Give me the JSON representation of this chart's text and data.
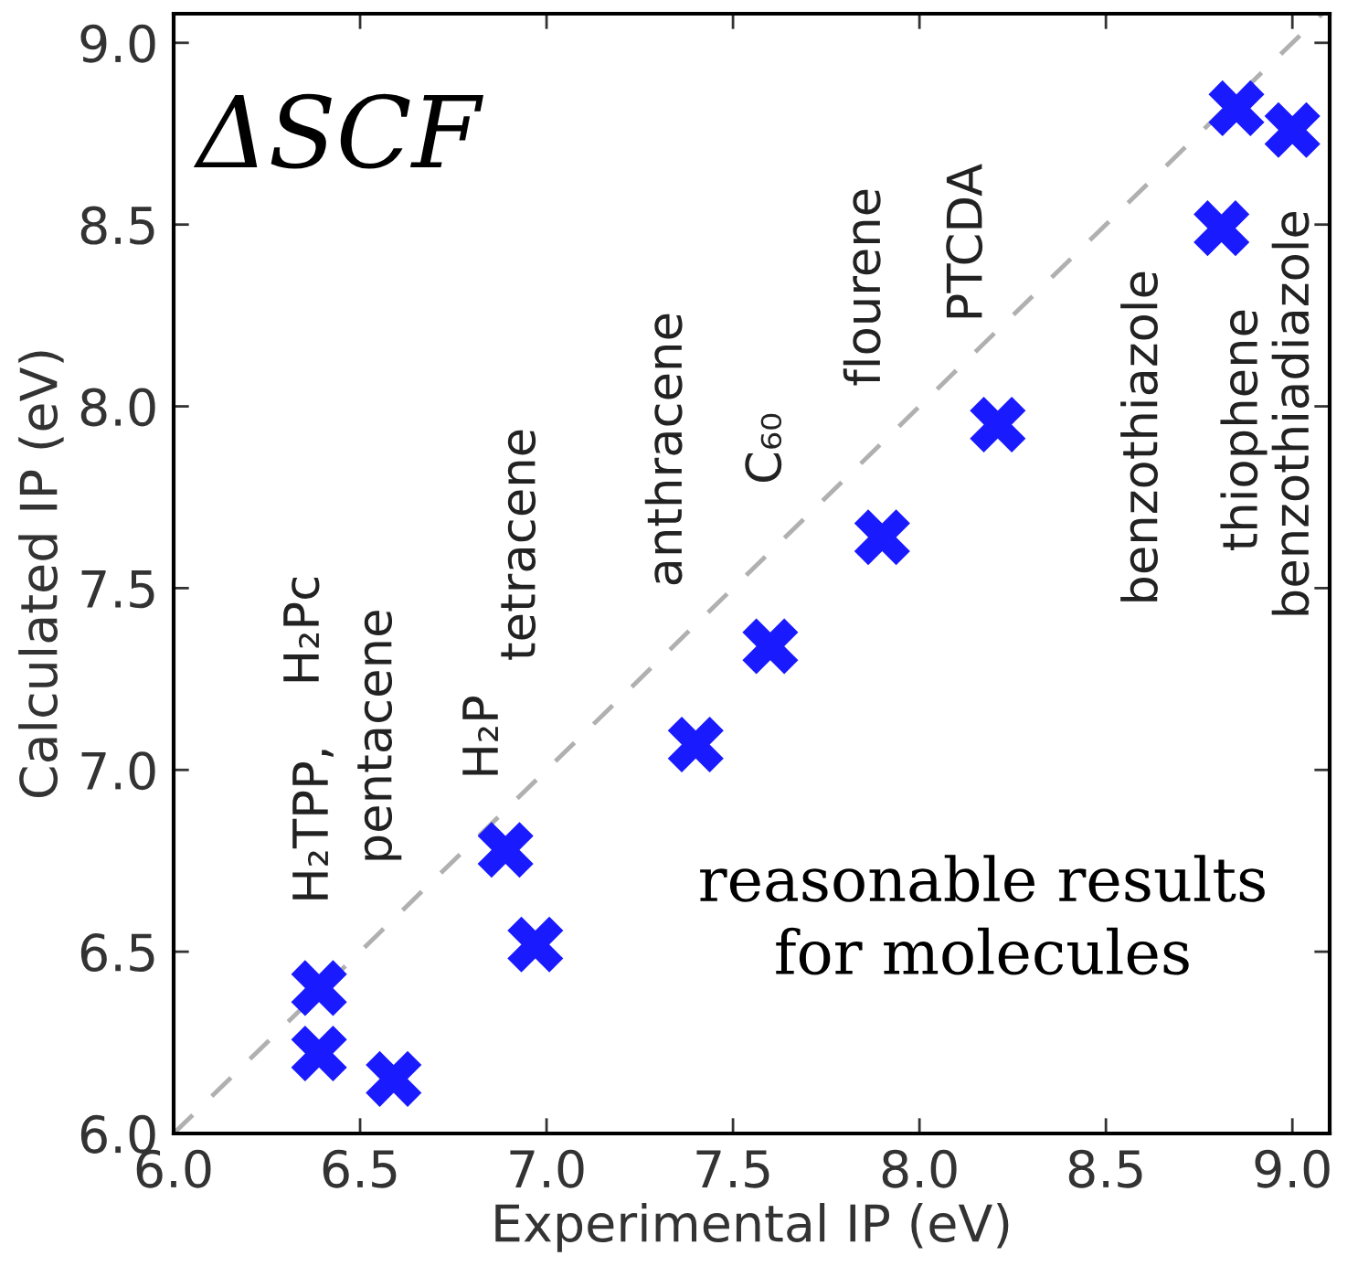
{
  "chart_data": {
    "type": "scatter",
    "xlabel": "Experimental IP (eV)",
    "ylabel": "Calculated IP (eV)",
    "xlim": [
      6.0,
      9.1
    ],
    "ylim": [
      6.0,
      9.08
    ],
    "xticks": [
      {
        "value": 6.0,
        "label": "6.0"
      },
      {
        "value": 6.5,
        "label": "6.5"
      },
      {
        "value": 7.0,
        "label": "7.0"
      },
      {
        "value": 7.5,
        "label": "7.5"
      },
      {
        "value": 8.0,
        "label": "8.0"
      },
      {
        "value": 8.5,
        "label": "8.5"
      },
      {
        "value": 9.0,
        "label": "9.0"
      }
    ],
    "yticks": [
      {
        "value": 6.0,
        "label": "6.0"
      },
      {
        "value": 6.5,
        "label": "6.5"
      },
      {
        "value": 7.0,
        "label": "7.0"
      },
      {
        "value": 7.5,
        "label": "7.5"
      },
      {
        "value": 8.0,
        "label": "8.0"
      },
      {
        "value": 8.5,
        "label": "8.5"
      },
      {
        "value": 9.0,
        "label": "9.0"
      }
    ],
    "series": [
      {
        "type": "line",
        "color": "#b0b0b0",
        "line_style": "dashed",
        "x": [
          6.0,
          9.08
        ],
        "values": [
          6.0,
          9.08
        ]
      },
      {
        "color": "#1a1aff",
        "marker": "cross",
        "x": [
          6.39,
          6.39,
          6.59,
          6.89,
          6.97,
          7.4,
          7.6,
          7.9,
          8.21,
          8.81,
          8.85,
          9.0
        ],
        "values": [
          6.4,
          6.22,
          6.15,
          6.78,
          6.52,
          7.07,
          7.34,
          7.64,
          7.95,
          8.49,
          8.82,
          8.76
        ]
      }
    ],
    "annotations": [
      "H₂TPP,",
      "H₂Pc",
      "pentacene",
      "H₂P",
      "tetracene",
      "anthracene",
      "C₆₀",
      "flourene",
      "PTCDA",
      "benzothiazole",
      "thiophene",
      "benzothiadiazole",
      "ΔSCF",
      "reasonable results\nfor molecules"
    ]
  }
}
